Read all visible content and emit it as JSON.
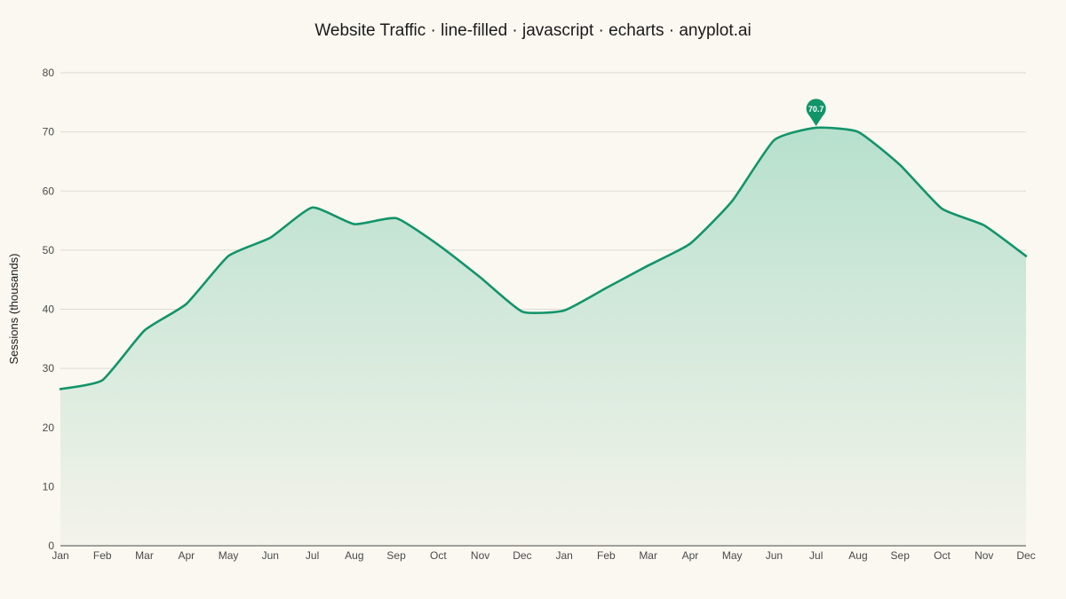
{
  "chart_data": {
    "type": "area",
    "title": "Website Traffic · line-filled · javascript · echarts · anyplot.ai",
    "xlabel": "",
    "ylabel": "Sessions (thousands)",
    "categories": [
      "Jan",
      "Feb",
      "Mar",
      "Apr",
      "May",
      "Jun",
      "Jul",
      "Aug",
      "Sep",
      "Oct",
      "Nov",
      "Dec",
      "Jan",
      "Feb",
      "Mar",
      "Apr",
      "May",
      "Jun",
      "Jul",
      "Aug",
      "Sep",
      "Oct",
      "Nov",
      "Dec"
    ],
    "series": [
      {
        "values": [
          26.5,
          28.0,
          36.4,
          40.9,
          49.0,
          52.1,
          57.2,
          54.4,
          55.4,
          50.9,
          45.4,
          39.6,
          39.8,
          43.6,
          47.4,
          51.1,
          58.3,
          68.6,
          70.7,
          70.0,
          64.4,
          57.0,
          54.2,
          49.0
        ],
        "color": "#12946A"
      }
    ],
    "ylim": [
      0,
      80
    ],
    "yticks": [
      "0",
      "10",
      "20",
      "30",
      "40",
      "50",
      "60",
      "70",
      "80"
    ],
    "grid": true,
    "legend": "none",
    "markpoint": {
      "label": "70.7",
      "value": 70.7,
      "category_index": 18
    },
    "colors": {
      "background": "#FAF8F1",
      "line": "#12946A",
      "area_top": "#B7E0CD",
      "area_bottom": "#F4F3EB",
      "grid": "#DDDAD2",
      "axis": "#4a4a4a"
    }
  }
}
